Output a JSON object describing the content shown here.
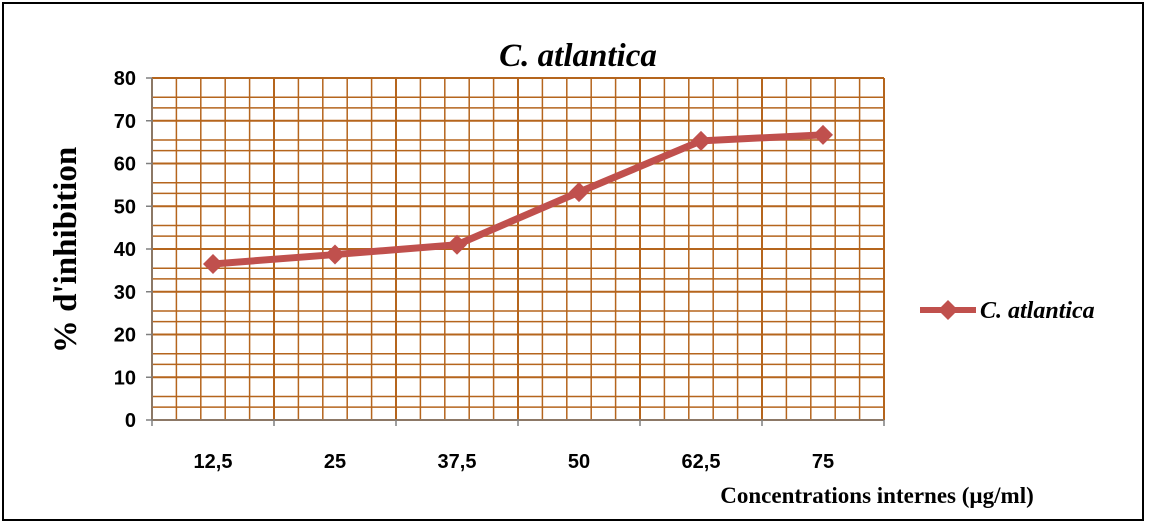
{
  "chart_data": {
    "type": "line",
    "title": "C. atlantica",
    "xlabel": "Concentrations internes (µg/ml)",
    "ylabel": "% d'inhibition",
    "categories": [
      "12,5",
      "25",
      "37,5",
      "50",
      "62,5",
      "75"
    ],
    "ylim": [
      0,
      80
    ],
    "yticks": [
      "0",
      "10",
      "20",
      "30",
      "40",
      "50",
      "60",
      "70",
      "80"
    ],
    "series": [
      {
        "name": "C. atlantica",
        "values": [
          36.5,
          38.7,
          41.0,
          53.3,
          65.3,
          66.7
        ]
      }
    ],
    "grid": true,
    "legend": "right",
    "colors": {
      "line": "#c0504d",
      "marker": "#c0504d",
      "grid": "#b5651d",
      "axis": "#7f7f7f"
    }
  }
}
